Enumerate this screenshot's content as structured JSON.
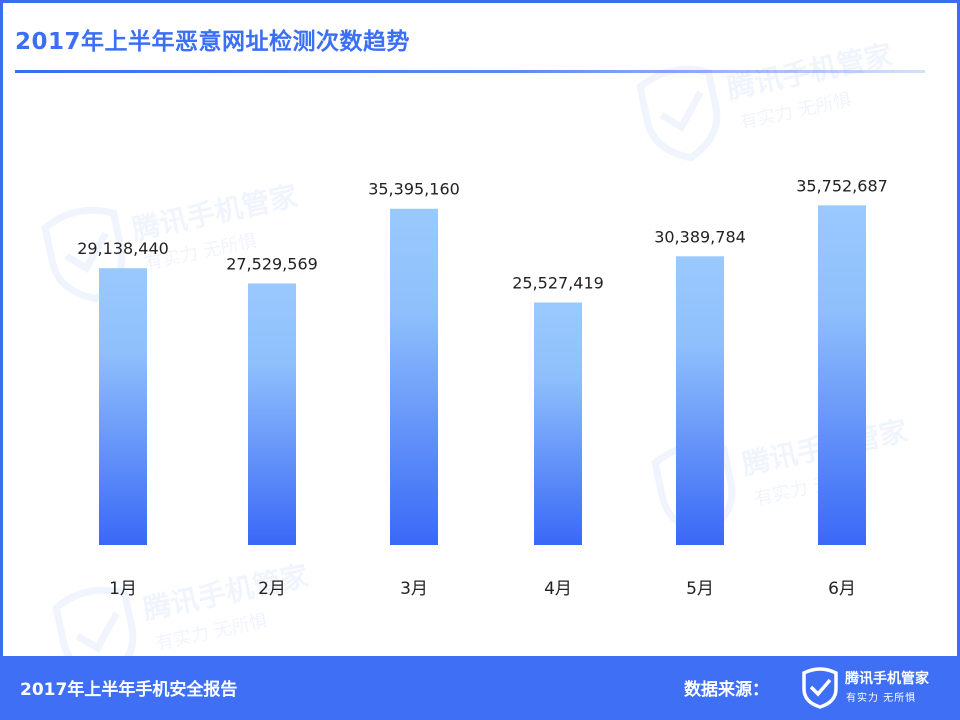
{
  "header": {
    "title": "2017年上半年恶意网址检测次数趋势"
  },
  "chart_data": {
    "type": "bar",
    "categories": [
      "1月",
      "2月",
      "3月",
      "4月",
      "5月",
      "6月"
    ],
    "values": [
      29138440,
      27529569,
      35395160,
      25527419,
      30389784,
      35752687
    ],
    "data_labels": [
      "29,138,440",
      "27,529,569",
      "35,395,160",
      "25,527,419",
      "30,389,784",
      "35,752,687"
    ],
    "title": "2017年上半年恶意网址检测次数趋势",
    "xlabel": "",
    "ylabel": "",
    "ylim": [
      0,
      40000000
    ],
    "grid": false,
    "bar_gradient": {
      "top": "#99c9fd",
      "bottom": "#3a68f7"
    }
  },
  "watermark": {
    "brand": "腾讯手机管家",
    "slogan": "有实力 无所惧",
    "icon": "shield-check-icon"
  },
  "footer": {
    "report_title": "2017年上半年手机安全报告",
    "source_label": "数据来源：",
    "logo_name": "腾讯手机管家",
    "logo_slogan": "有实力 无所惧",
    "logo_icon": "shield-check-icon"
  },
  "colors": {
    "accent": "#3c6df0",
    "title_text": "#3b6ff5",
    "footer_bg": "#3e6ff4",
    "label_text": "#222222"
  }
}
